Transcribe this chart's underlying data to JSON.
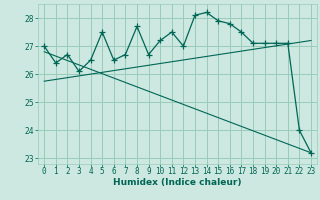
{
  "xlabel": "Humidex (Indice chaleur)",
  "bg_color": "#cce8e0",
  "grid_color": "#99ccbb",
  "line_color": "#006655",
  "xlim": [
    -0.5,
    23.5
  ],
  "ylim": [
    22.8,
    28.5
  ],
  "yticks": [
    23,
    24,
    25,
    26,
    27,
    28
  ],
  "xticks": [
    0,
    1,
    2,
    3,
    4,
    5,
    6,
    7,
    8,
    9,
    10,
    11,
    12,
    13,
    14,
    15,
    16,
    17,
    18,
    19,
    20,
    21,
    22,
    23
  ],
  "main_x": [
    0,
    1,
    2,
    3,
    4,
    5,
    6,
    7,
    8,
    9,
    10,
    11,
    12,
    13,
    14,
    15,
    16,
    17,
    18,
    19,
    20,
    21,
    22,
    23
  ],
  "main_y": [
    27.0,
    26.4,
    26.7,
    26.1,
    26.5,
    27.5,
    26.5,
    26.7,
    27.7,
    26.7,
    27.2,
    27.5,
    27.0,
    28.1,
    28.2,
    27.9,
    27.8,
    27.5,
    27.1,
    27.1,
    27.1,
    27.1,
    24.0,
    23.2
  ],
  "trend1_x": [
    0,
    23
  ],
  "trend1_y": [
    25.75,
    27.2
  ],
  "trend2_x": [
    0,
    23
  ],
  "trend2_y": [
    26.8,
    23.2
  ],
  "tick_fontsize": 5.5,
  "xlabel_fontsize": 6.5
}
